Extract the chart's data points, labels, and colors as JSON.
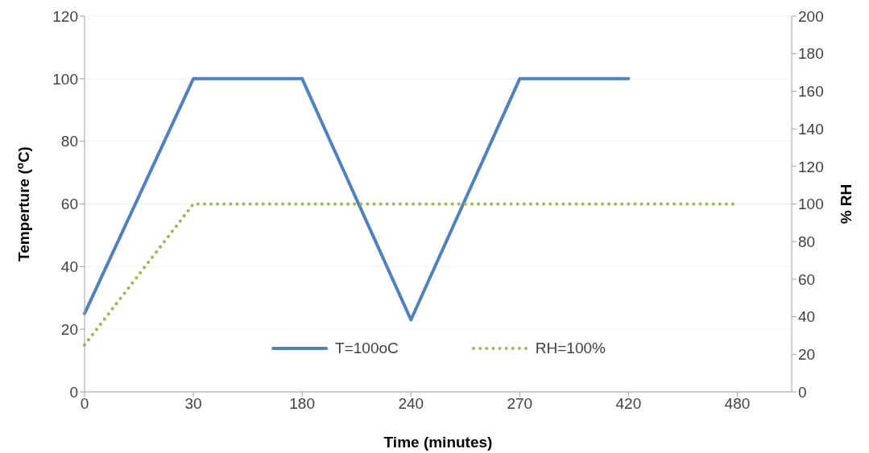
{
  "chart_data": {
    "type": "line",
    "xlabel": "Time (minutes)",
    "ylabel": "Temperture ($^{o}$C)",
    "y2label": "% RH",
    "categories": [
      "0",
      "30",
      "180",
      "240",
      "270",
      "420",
      "480"
    ],
    "series": [
      {
        "name": "T=100oC",
        "color": "#4f81bd",
        "line_style": "solid",
        "values": [
          25,
          100,
          100,
          23,
          100,
          100,
          null
        ]
      },
      {
        "name": "RH=100%",
        "color": "#9bbb59",
        "line_style": "dotted",
        "axis": "y2",
        "values": [
          25,
          100,
          100,
          100,
          100,
          100,
          100
        ]
      }
    ],
    "ylim": [
      0,
      120
    ],
    "yticks": [
      0,
      20,
      40,
      60,
      80,
      100,
      120
    ],
    "y2lim": [
      0,
      200
    ],
    "y2ticks": [
      0,
      20,
      40,
      60,
      80,
      100,
      120,
      140,
      160,
      180,
      200
    ],
    "grid": "y",
    "legend": "bottom",
    "marker": "none"
  }
}
